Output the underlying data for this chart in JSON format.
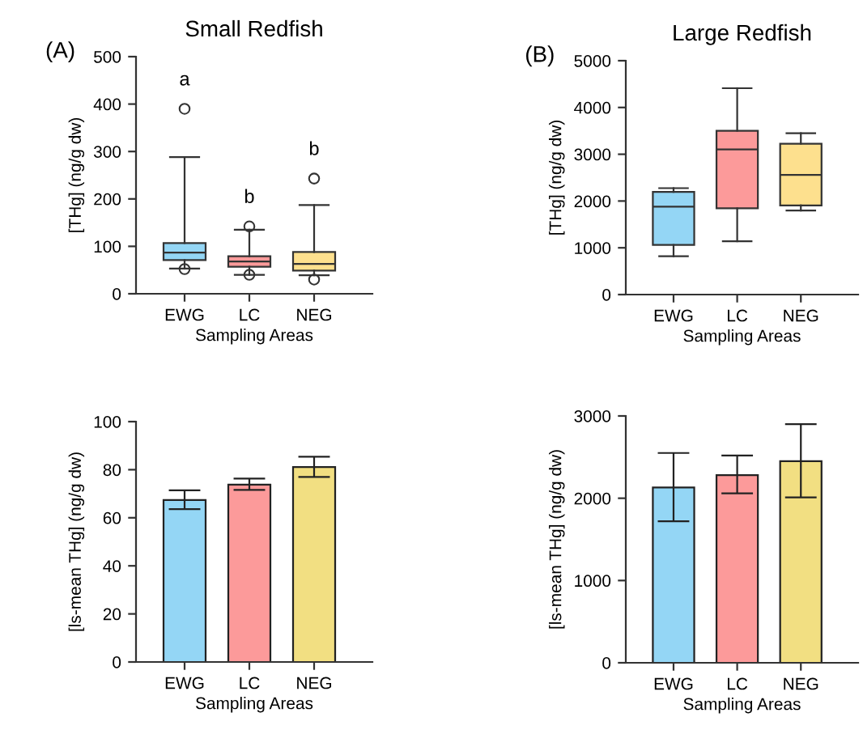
{
  "chart_data": [
    {
      "type": "box",
      "title": "Small Redfish",
      "xlabel": "Sampling Areas",
      "ylabel": "[THg] (ng/g dw)",
      "categories": [
        "EWG",
        "LC",
        "NEG"
      ],
      "colors": [
        "#94d6f5",
        "#fc9a9a",
        "#fde08e"
      ],
      "boxes": [
        {
          "low": 53,
          "q1": 71,
          "median": 87,
          "q3": 107,
          "high": 288,
          "outliers": [
            390,
            52
          ]
        },
        {
          "low": 40,
          "q1": 57,
          "median": 68,
          "q3": 79,
          "high": 135,
          "outliers": [
            142,
            40
          ]
        },
        {
          "low": 39,
          "q1": 49,
          "median": 63,
          "q3": 88,
          "high": 187,
          "outliers": [
            243,
            30
          ]
        }
      ],
      "ylim": [
        0,
        500
      ],
      "yticks": [
        0,
        100,
        200,
        300,
        400,
        500
      ],
      "grid": false,
      "annotations": [
        "(A)",
        "a",
        "b",
        "b"
      ]
    },
    {
      "type": "box",
      "title": "Large Redfish",
      "xlabel": "Sampling Areas",
      "ylabel": "[THg] (ng/g dw)",
      "categories": [
        "EWG",
        "LC",
        "NEG"
      ],
      "colors": [
        "#94d6f5",
        "#fc9a9a",
        "#fde08e"
      ],
      "boxes": [
        {
          "low": 818,
          "q1": 1060,
          "median": 1878,
          "q3": 2195,
          "high": 2275
        },
        {
          "low": 1140,
          "q1": 1843,
          "median": 3105,
          "q3": 3502,
          "high": 4412
        },
        {
          "low": 1797,
          "q1": 1907,
          "median": 2558,
          "q3": 3226,
          "high": 3450
        }
      ],
      "ylim": [
        0,
        5000
      ],
      "yticks": [
        0,
        1000,
        2000,
        3000,
        4000,
        5000
      ],
      "grid": false,
      "annotations": [
        "(B)"
      ]
    },
    {
      "type": "bar",
      "xlabel": "Sampling Areas",
      "ylabel": "[ls-mean THg] (ng/g dw)",
      "categories": [
        "EWG",
        "LC",
        "NEG"
      ],
      "colors": [
        "#94d6f5",
        "#fc9a9a",
        "#f2df82"
      ],
      "values": [
        67.4,
        73.8,
        81.1
      ],
      "errors": [
        [
          63.6,
          71.4
        ],
        [
          71.6,
          76.3
        ],
        [
          77.0,
          85.4
        ]
      ],
      "ylim": [
        0,
        100
      ],
      "yticks": [
        0,
        20,
        40,
        60,
        80,
        100
      ],
      "grid": false
    },
    {
      "type": "bar",
      "xlabel": "Sampling Areas",
      "ylabel": "[ls-mean THg] (ng/g dw)",
      "categories": [
        "EWG",
        "LC",
        "NEG"
      ],
      "colors": [
        "#94d6f5",
        "#fc9a9a",
        "#f2df82"
      ],
      "values": [
        2130,
        2280,
        2450
      ],
      "errors": [
        [
          1720,
          2550
        ],
        [
          2060,
          2520
        ],
        [
          2010,
          2900
        ]
      ],
      "ylim": [
        0,
        3000
      ],
      "yticks": [
        0,
        1000,
        2000,
        3000
      ],
      "grid": false
    }
  ]
}
